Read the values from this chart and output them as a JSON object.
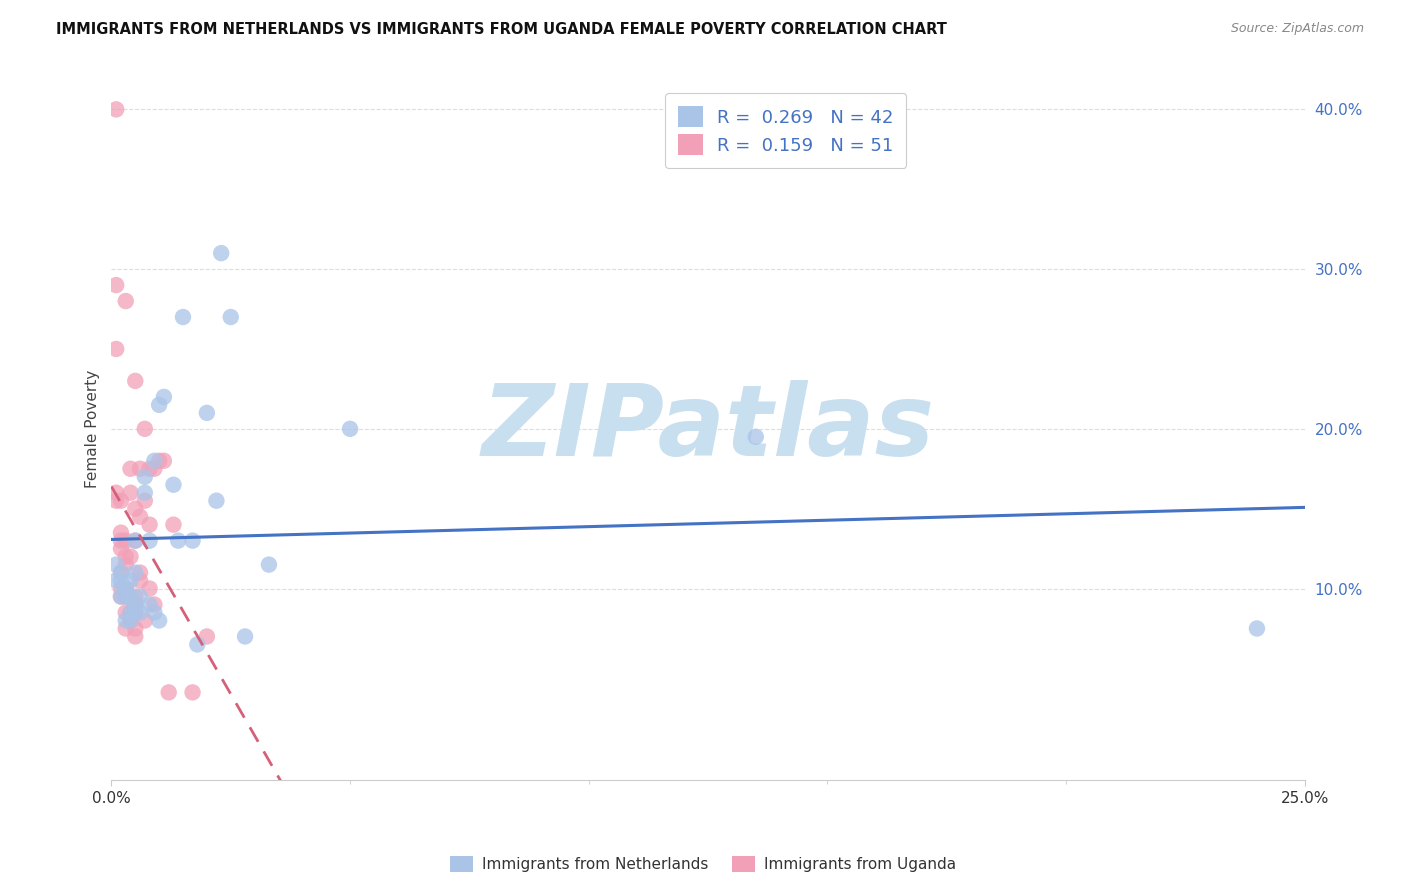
{
  "title": "IMMIGRANTS FROM NETHERLANDS VS IMMIGRANTS FROM UGANDA FEMALE POVERTY CORRELATION CHART",
  "source": "Source: ZipAtlas.com",
  "ylabel": "Female Poverty",
  "r_netherlands": 0.269,
  "n_netherlands": 42,
  "r_uganda": 0.159,
  "n_uganda": 51,
  "color_netherlands": "#aac4e8",
  "color_uganda": "#f2a0b8",
  "line_color_netherlands": "#4472c4",
  "line_color_uganda": "#d4607a",
  "legend_text_color": "#4472c4",
  "xlim": [
    0.0,
    0.25
  ],
  "ylim": [
    -0.02,
    0.42
  ],
  "yticks": [
    0.1,
    0.2,
    0.3,
    0.4
  ],
  "xtick_positions": [
    0.0,
    0.25
  ],
  "xtick_labels": [
    "0.0%",
    "25.0%"
  ],
  "netherlands_x": [
    0.001,
    0.001,
    0.002,
    0.002,
    0.002,
    0.003,
    0.003,
    0.003,
    0.003,
    0.004,
    0.004,
    0.004,
    0.004,
    0.005,
    0.005,
    0.005,
    0.005,
    0.006,
    0.006,
    0.007,
    0.007,
    0.008,
    0.008,
    0.009,
    0.009,
    0.01,
    0.01,
    0.011,
    0.013,
    0.014,
    0.015,
    0.017,
    0.018,
    0.02,
    0.022,
    0.023,
    0.025,
    0.028,
    0.033,
    0.05,
    0.135,
    0.24
  ],
  "netherlands_y": [
    0.115,
    0.105,
    0.105,
    0.11,
    0.095,
    0.095,
    0.1,
    0.1,
    0.08,
    0.085,
    0.095,
    0.105,
    0.08,
    0.085,
    0.09,
    0.11,
    0.13,
    0.085,
    0.095,
    0.16,
    0.17,
    0.09,
    0.13,
    0.085,
    0.18,
    0.215,
    0.08,
    0.22,
    0.165,
    0.13,
    0.27,
    0.13,
    0.065,
    0.21,
    0.155,
    0.31,
    0.27,
    0.07,
    0.115,
    0.2,
    0.195,
    0.075
  ],
  "uganda_x": [
    0.001,
    0.001,
    0.001,
    0.001,
    0.001,
    0.002,
    0.002,
    0.002,
    0.002,
    0.002,
    0.002,
    0.002,
    0.003,
    0.003,
    0.003,
    0.003,
    0.003,
    0.003,
    0.003,
    0.003,
    0.004,
    0.004,
    0.004,
    0.004,
    0.004,
    0.005,
    0.005,
    0.005,
    0.005,
    0.005,
    0.005,
    0.005,
    0.005,
    0.006,
    0.006,
    0.006,
    0.006,
    0.007,
    0.007,
    0.007,
    0.008,
    0.008,
    0.008,
    0.009,
    0.009,
    0.01,
    0.011,
    0.012,
    0.013,
    0.017,
    0.02
  ],
  "uganda_y": [
    0.4,
    0.29,
    0.25,
    0.155,
    0.16,
    0.095,
    0.1,
    0.11,
    0.125,
    0.13,
    0.135,
    0.155,
    0.075,
    0.085,
    0.095,
    0.1,
    0.115,
    0.12,
    0.13,
    0.28,
    0.08,
    0.085,
    0.12,
    0.16,
    0.175,
    0.07,
    0.075,
    0.085,
    0.09,
    0.095,
    0.13,
    0.15,
    0.23,
    0.105,
    0.11,
    0.145,
    0.175,
    0.08,
    0.155,
    0.2,
    0.1,
    0.14,
    0.175,
    0.09,
    0.175,
    0.18,
    0.18,
    0.035,
    0.14,
    0.035,
    0.07
  ],
  "watermark_text": "ZIPatlas",
  "watermark_color": "#c8dff0",
  "background_color": "#ffffff"
}
